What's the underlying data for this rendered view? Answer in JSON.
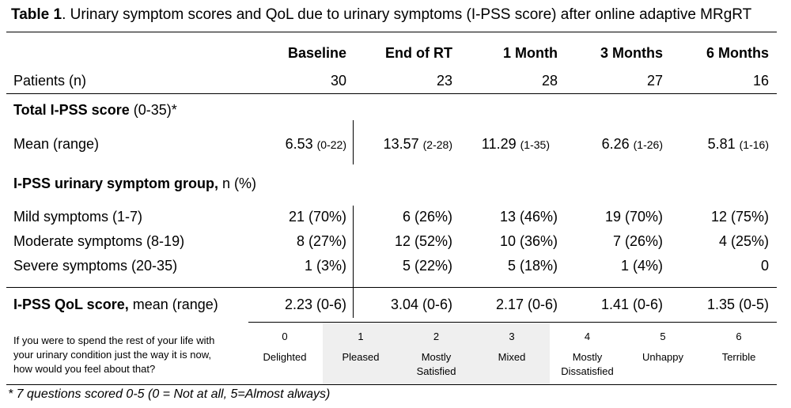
{
  "caption": {
    "label": "Table 1",
    "text": ". Urinary symptom scores and QoL due to urinary symptoms (I-PSS score) after online adaptive MRgRT"
  },
  "columns": [
    "Baseline",
    "End of RT",
    "1 Month",
    "3 Months",
    "6 Months"
  ],
  "patients": {
    "label": "Patients (n)",
    "values": [
      "30",
      "23",
      "28",
      "27",
      "16"
    ]
  },
  "total_ipss": {
    "label_bold": "Total I-PSS score",
    "label_rest": " (0-35)*",
    "mean_label": "Mean (range)",
    "means": [
      {
        "value": "6.53",
        "range": "(0-22)"
      },
      {
        "value": "13.57",
        "range": "(2-28)"
      },
      {
        "value": "11.29",
        "range": "(1-35)"
      },
      {
        "value": "6.26",
        "range": "(1-26)"
      },
      {
        "value": "5.81",
        "range": "(1-16)"
      }
    ]
  },
  "symptom_group": {
    "label_bold": "I-PSS urinary symptom group,",
    "label_rest": " n (%)",
    "rows": [
      {
        "label": "Mild symptoms (1-7)",
        "values": [
          "21 (70%)",
          "6 (26%)",
          "13 (46%)",
          "19 (70%)",
          "12 (75%)"
        ]
      },
      {
        "label": "Moderate symptoms (8-19)",
        "values": [
          "8 (27%)",
          "12 (52%)",
          "10 (36%)",
          "7 (26%)",
          "4 (25%)"
        ]
      },
      {
        "label": "Severe symptoms (20-35)",
        "values": [
          "1 (3%)",
          "5 (22%)",
          "5 (18%)",
          "1 (4%)",
          "0"
        ]
      }
    ]
  },
  "qol": {
    "label_bold": "I-PSS QoL score,",
    "label_rest": " mean (range)",
    "values": [
      "2.23 (0-6)",
      "3.04 (0-6)",
      "2.17 (0-6)",
      "1.41 (0-6)",
      "1.35 (0-5)"
    ]
  },
  "question": {
    "line1": "If you were to spend the rest of your life with",
    "line2": "your urinary condition just the way it is now,",
    "line3": "how would you feel about that?"
  },
  "scale": [
    {
      "num": "0",
      "line1": "Delighted",
      "line2": ""
    },
    {
      "num": "1",
      "line1": "Pleased",
      "line2": ""
    },
    {
      "num": "2",
      "line1": "Mostly",
      "line2": "Satisfied"
    },
    {
      "num": "3",
      "line1": "Mixed",
      "line2": ""
    },
    {
      "num": "4",
      "line1": "Mostly",
      "line2": "Dissatisfied"
    },
    {
      "num": "5",
      "line1": "Unhappy",
      "line2": ""
    },
    {
      "num": "6",
      "line1": "Terrible",
      "line2": ""
    }
  ],
  "footnote": "* 7 questions scored 0-5 (0 = Not at all, 5=Almost always)"
}
